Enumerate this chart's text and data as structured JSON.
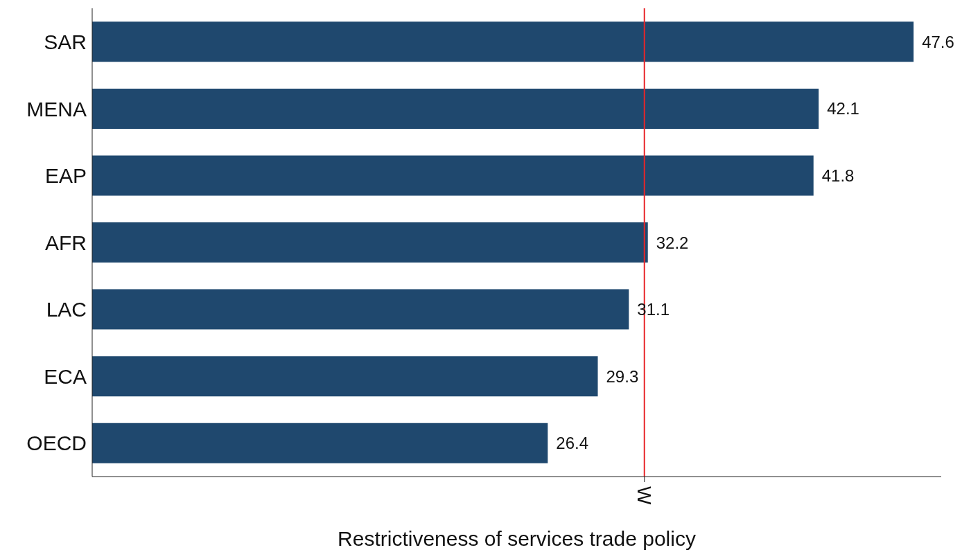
{
  "chart_data": {
    "type": "bar",
    "orientation": "horizontal",
    "xlabel": "Restrictiveness of services trade policy",
    "categories": [
      "SAR",
      "MENA",
      "EAP",
      "AFR",
      "LAC",
      "ECA",
      "OECD"
    ],
    "values": [
      47.6,
      42.1,
      41.8,
      32.2,
      31.1,
      29.3,
      26.4
    ],
    "color": "#1f486e",
    "data_labels": true,
    "xlim": [
      0,
      49.2
    ],
    "xticks": [
      {
        "value": 32.0,
        "label": "W"
      }
    ],
    "ref_lines": [
      {
        "axis": "x",
        "value": 32.0,
        "color": "#e8262a"
      }
    ],
    "grid": false
  }
}
